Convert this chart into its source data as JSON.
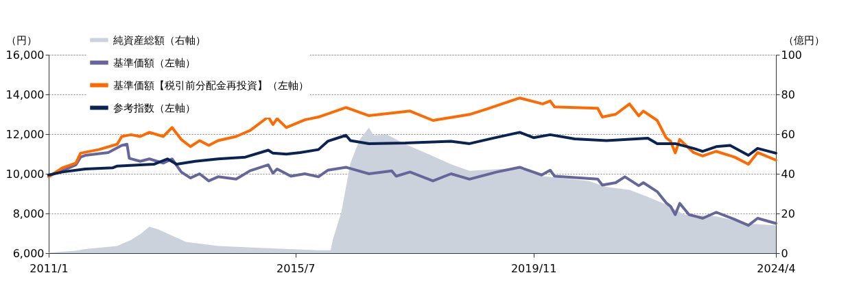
{
  "chart_data": {
    "type": "line",
    "ylabel": "（円）",
    "y2label": "（億円）",
    "xlim": [
      "2011-01",
      "2024-04"
    ],
    "xticks": [
      {
        "value": "2011-01",
        "label": "2011/1"
      },
      {
        "value": "2015-07",
        "label": "2015/7"
      },
      {
        "value": "2019-11",
        "label": "2019/11"
      },
      {
        "value": "2024-04",
        "label": "2024/4"
      }
    ],
    "ylim": [
      6000,
      16000
    ],
    "yticks": [
      {
        "value": 6000,
        "label": "6,000"
      },
      {
        "value": 8000,
        "label": "8,000"
      },
      {
        "value": 10000,
        "label": "10,000"
      },
      {
        "value": 12000,
        "label": "12,000"
      },
      {
        "value": 14000,
        "label": "14,000"
      },
      {
        "value": 16000,
        "label": "16,000"
      }
    ],
    "y2lim": [
      0,
      100
    ],
    "y2ticks": [
      0,
      20,
      40,
      60,
      80,
      100
    ],
    "grid": "y",
    "legend": "top left",
    "marker": "none",
    "line_style": "solid",
    "series": [
      {
        "name": "純資産総額（右軸）",
        "type": "area",
        "axis": "y2",
        "color": "#ccd2dc",
        "x": [
          "2011-01",
          "2011-07",
          "2011-09",
          "2012-04",
          "2012-07",
          "2012-09",
          "2012-11",
          "2013-01",
          "2013-07",
          "2014-02",
          "2014-11",
          "2015-12",
          "2016-02-20",
          "2016-03-05",
          "2016-05",
          "2016-07",
          "2016-09",
          "2016-11",
          "2016-12",
          "2017-03",
          "2017-07",
          "2017-12",
          "2018-05",
          "2018-09",
          "2019-08",
          "2020-01",
          "2020-11",
          "2021-03",
          "2021-08",
          "2021-12",
          "2022-04",
          "2022-08",
          "2023-03",
          "2023-10",
          "2024-04"
        ],
        "values": [
          0.3,
          1.2,
          2.1,
          3.6,
          6.6,
          9.6,
          13.4,
          11.9,
          5.7,
          3.6,
          2.7,
          1.5,
          1.5,
          6.6,
          20.6,
          45.4,
          57.3,
          63.3,
          59.4,
          59.7,
          54.9,
          49.9,
          44.8,
          41.5,
          43.0,
          38.8,
          36.4,
          33.4,
          31.9,
          28.4,
          24.5,
          19.4,
          18.5,
          14.9,
          14.0
        ]
      },
      {
        "name": "基準価額（左軸）",
        "color": "#66669a",
        "x": [
          "2011-01",
          "2011-03",
          "2011-04",
          "2011-07",
          "2011-08",
          "2011-09",
          "2012-02",
          "2012-05",
          "2012-06-05",
          "2012-06-20",
          "2012-09",
          "2012-11",
          "2013-02",
          "2013-04",
          "2013-06",
          "2013-08",
          "2013-10",
          "2013-12",
          "2014-02",
          "2014-06",
          "2014-09",
          "2015-01",
          "2015-02",
          "2015-03",
          "2015-06",
          "2015-09",
          "2015-12",
          "2016-02",
          "2016-06",
          "2016-11",
          "2017-04",
          "2017-05",
          "2017-08",
          "2018-01",
          "2018-05",
          "2018-09",
          "2019-03",
          "2019-08",
          "2019-12-25",
          "2020-02-20",
          "2020-03-20",
          "2021-01",
          "2021-02",
          "2021-05",
          "2021-07",
          "2021-10",
          "2021-11",
          "2022-02",
          "2022-04",
          "2022-05",
          "2022-06",
          "2022-07",
          "2022-09",
          "2022-12",
          "2023-03",
          "2023-07",
          "2023-10",
          "2023-12",
          "2024-04"
        ],
        "values": [
          9880,
          10090,
          10150,
          10450,
          10840,
          10930,
          11070,
          11430,
          11490,
          10780,
          10630,
          10750,
          10540,
          10750,
          10090,
          9790,
          10000,
          9640,
          9850,
          9730,
          10150,
          10450,
          10030,
          10240,
          9880,
          10000,
          9850,
          10180,
          10330,
          10000,
          10150,
          9880,
          10090,
          9640,
          10000,
          9730,
          10090,
          10330,
          9940,
          10180,
          9880,
          9730,
          9430,
          9550,
          9850,
          9400,
          9550,
          9100,
          8540,
          8360,
          7940,
          8510,
          7940,
          7760,
          8060,
          7700,
          7400,
          7760,
          7500
        ]
      },
      {
        "name": "基準価額【税引前分配金再投資】（左軸）",
        "color": "#ff6a00",
        "x": [
          "2011-01",
          "2011-04",
          "2011-07",
          "2011-08",
          "2011-12",
          "2012-04",
          "2012-05",
          "2012-07",
          "2012-09",
          "2012-11",
          "2013-02",
          "2013-04",
          "2013-06",
          "2013-08",
          "2013-10",
          "2013-12",
          "2014-02",
          "2014-06",
          "2014-09",
          "2015-01",
          "2015-02",
          "2015-03",
          "2015-05",
          "2015-09",
          "2015-12",
          "2016-06",
          "2016-11",
          "2017-08",
          "2018-01",
          "2018-09",
          "2019-01",
          "2019-08",
          "2020-01",
          "2020-02-20",
          "2020-03-20",
          "2021-01",
          "2021-02",
          "2021-05",
          "2021-08",
          "2021-10",
          "2021-11",
          "2022-02",
          "2022-04",
          "2022-05",
          "2022-06",
          "2022-07",
          "2022-10",
          "2022-12",
          "2023-03",
          "2023-07",
          "2023-10",
          "2023-12",
          "2024-04"
        ],
        "values": [
          9850,
          10300,
          10540,
          11040,
          11220,
          11490,
          11880,
          11970,
          11880,
          12090,
          11880,
          12330,
          11730,
          11370,
          11670,
          11430,
          11670,
          11880,
          12180,
          12870,
          12480,
          12780,
          12330,
          12720,
          12860,
          13340,
          12930,
          13160,
          12690,
          12990,
          13280,
          13820,
          13520,
          13670,
          13370,
          13300,
          12860,
          13000,
          13520,
          12920,
          13160,
          12690,
          11820,
          11640,
          11050,
          11730,
          11070,
          10900,
          11130,
          10840,
          10480,
          11070,
          10690
        ]
      },
      {
        "name": "参考指数（左軸）",
        "color": "#0a2352",
        "x": [
          "2011-01",
          "2011-04",
          "2011-09",
          "2012-03",
          "2012-04",
          "2012-09",
          "2012-12",
          "2013-03",
          "2013-05",
          "2013-09",
          "2014-02",
          "2014-08",
          "2015-01",
          "2015-02",
          "2015-05",
          "2015-08",
          "2015-12",
          "2016-02",
          "2016-06",
          "2016-07",
          "2016-11",
          "2017-07",
          "2018-05",
          "2018-09",
          "2019-02",
          "2019-08",
          "2019-11",
          "2020-02-20",
          "2020-08",
          "2021-03",
          "2021-12",
          "2022-02",
          "2022-06",
          "2022-10",
          "2022-12",
          "2023-03",
          "2023-06",
          "2023-10",
          "2023-12",
          "2024-04"
        ],
        "values": [
          9940,
          10090,
          10240,
          10300,
          10390,
          10450,
          10480,
          10750,
          10480,
          10630,
          10750,
          10840,
          11190,
          11040,
          10990,
          11070,
          11220,
          11640,
          11940,
          11670,
          11520,
          11550,
          11640,
          11520,
          11790,
          12090,
          11820,
          11970,
          11760,
          11670,
          11790,
          11520,
          11520,
          11280,
          11130,
          11370,
          11430,
          10930,
          11280,
          11040
        ]
      }
    ]
  }
}
